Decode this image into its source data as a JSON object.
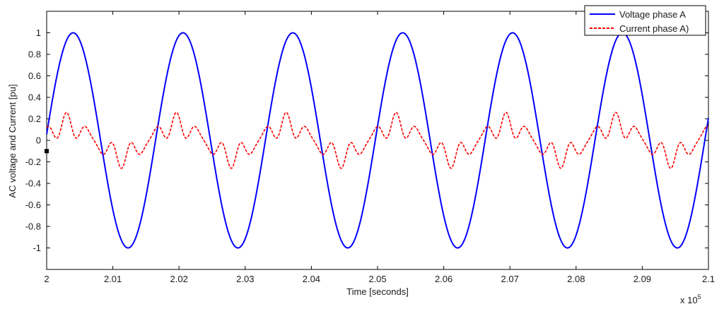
{
  "chart_data": {
    "type": "line",
    "xlabel": "Time [seconds]",
    "ylabel": "AC voltage and Current [pu]",
    "x_multiplier_label": "x 10",
    "x_multiplier_exponent": "5",
    "xlim": [
      2.0,
      2.1
    ],
    "ylim": [
      -1.2,
      1.2
    ],
    "x_ticks": [
      2.0,
      2.01,
      2.02,
      2.03,
      2.04,
      2.05,
      2.06,
      2.07,
      2.08,
      2.09,
      2.1
    ],
    "x_tick_labels": [
      "2",
      "2.01",
      "2.02",
      "2.03",
      "2.04",
      "2.05",
      "2.06",
      "2.07",
      "2.08",
      "2.09",
      "2.1"
    ],
    "y_ticks": [
      -1,
      -0.8,
      -0.6,
      -0.4,
      -0.2,
      0,
      0.2,
      0.4,
      0.6,
      0.8,
      1
    ],
    "y_tick_labels": [
      "-1",
      "-0.8",
      "-0.6",
      "-0.4",
      "-0.2",
      "0",
      "0.2",
      "0.4",
      "0.6",
      "0.8",
      "1"
    ],
    "grid": false,
    "legend_position": "top-right",
    "series": [
      {
        "name": "Voltage phase A",
        "color": "#0000ff",
        "style": "solid",
        "peak_x": [
          2.004,
          2.0206,
          2.0373,
          2.054,
          2.0706,
          2.0873
        ],
        "trough_x": [
          2.0123,
          2.029,
          2.0456,
          2.0623,
          2.079,
          2.0956
        ],
        "amplitude": 1.0
      },
      {
        "name": "Current phase A)",
        "color": "#ff0000",
        "style": "dashed",
        "peak_x": [
          2.003,
          2.0196,
          2.0363,
          2.053,
          2.0696,
          2.0863
        ],
        "peak_value": 0.26,
        "trough_x": [
          2.0113,
          2.028,
          2.0446,
          2.0613,
          2.078,
          2.0946
        ],
        "trough_value": -0.26
      }
    ]
  }
}
